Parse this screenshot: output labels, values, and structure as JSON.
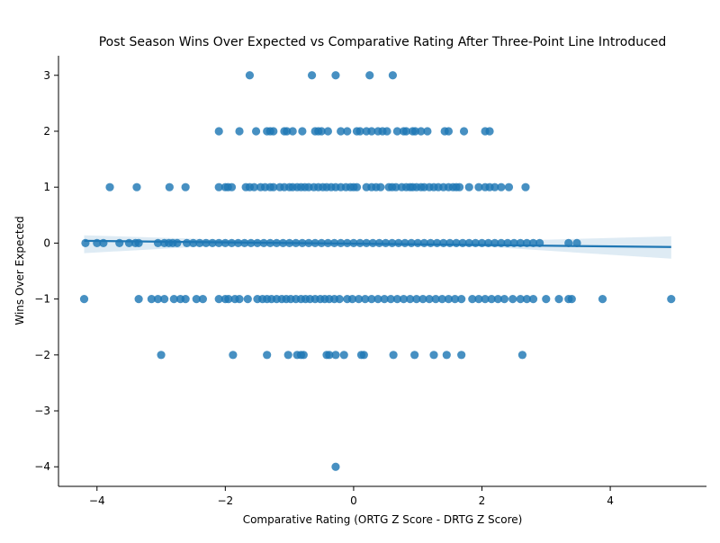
{
  "chart_data": {
    "type": "scatter",
    "title": "Post Season Wins Over Expected vs Comparative Rating After Three-Point Line Introduced",
    "xlabel": "Comparative Rating (ORTG Z Score - DRTG Z Score)",
    "ylabel": "Wins Over Expected",
    "xlim": [
      -4.6,
      5.5
    ],
    "ylim": [
      -4.35,
      3.35
    ],
    "xticks": [
      -4,
      -2,
      0,
      2,
      4
    ],
    "yticks": [
      -4,
      -3,
      -2,
      -1,
      0,
      1,
      2,
      3
    ],
    "xtick_labels": [
      "−4",
      "−2",
      "0",
      "2",
      "4"
    ],
    "ytick_labels": [
      "−4",
      "−3",
      "−2",
      "−1",
      "0",
      "1",
      "2",
      "3"
    ],
    "grid": false,
    "legend": "none",
    "colors": {
      "points": "#1f77b4",
      "regression": "#1f77b4",
      "band": "#1f77b4"
    },
    "regression": {
      "x": [
        -4.2,
        4.95
      ],
      "y": [
        0.04,
        -0.07
      ]
    },
    "confidence_band": {
      "x": [
        -4.2,
        -2,
        0,
        2,
        4.95
      ],
      "lower": [
        -0.18,
        -0.04,
        -0.03,
        -0.06,
        -0.28
      ],
      "upper": [
        0.14,
        0.06,
        0.03,
        0.03,
        0.12
      ]
    },
    "points": [
      {
        "x": -1.62,
        "y": 3
      },
      {
        "x": -0.65,
        "y": 3
      },
      {
        "x": -0.28,
        "y": 3
      },
      {
        "x": 0.25,
        "y": 3
      },
      {
        "x": 0.61,
        "y": 3
      },
      {
        "x": -2.1,
        "y": 2
      },
      {
        "x": -1.78,
        "y": 2
      },
      {
        "x": -1.52,
        "y": 2
      },
      {
        "x": -1.35,
        "y": 2
      },
      {
        "x": -1.3,
        "y": 2
      },
      {
        "x": -1.25,
        "y": 2
      },
      {
        "x": -1.08,
        "y": 2
      },
      {
        "x": -1.04,
        "y": 2
      },
      {
        "x": -0.95,
        "y": 2
      },
      {
        "x": -0.8,
        "y": 2
      },
      {
        "x": -0.6,
        "y": 2
      },
      {
        "x": -0.55,
        "y": 2
      },
      {
        "x": -0.5,
        "y": 2
      },
      {
        "x": -0.4,
        "y": 2
      },
      {
        "x": -0.2,
        "y": 2
      },
      {
        "x": -0.1,
        "y": 2
      },
      {
        "x": 0.05,
        "y": 2
      },
      {
        "x": 0.1,
        "y": 2
      },
      {
        "x": 0.2,
        "y": 2
      },
      {
        "x": 0.28,
        "y": 2
      },
      {
        "x": 0.38,
        "y": 2
      },
      {
        "x": 0.45,
        "y": 2
      },
      {
        "x": 0.52,
        "y": 2
      },
      {
        "x": 0.68,
        "y": 2
      },
      {
        "x": 0.78,
        "y": 2
      },
      {
        "x": 0.82,
        "y": 2
      },
      {
        "x": 0.92,
        "y": 2
      },
      {
        "x": 0.96,
        "y": 2
      },
      {
        "x": 1.05,
        "y": 2
      },
      {
        "x": 1.15,
        "y": 2
      },
      {
        "x": 1.42,
        "y": 2
      },
      {
        "x": 1.48,
        "y": 2
      },
      {
        "x": 1.72,
        "y": 2
      },
      {
        "x": 2.05,
        "y": 2
      },
      {
        "x": 2.12,
        "y": 2
      },
      {
        "x": -3.8,
        "y": 1
      },
      {
        "x": -3.38,
        "y": 1
      },
      {
        "x": -2.87,
        "y": 1
      },
      {
        "x": -2.62,
        "y": 1
      },
      {
        "x": -2.1,
        "y": 1
      },
      {
        "x": -2.0,
        "y": 1
      },
      {
        "x": -1.96,
        "y": 1
      },
      {
        "x": -1.9,
        "y": 1
      },
      {
        "x": -1.68,
        "y": 1
      },
      {
        "x": -1.62,
        "y": 1
      },
      {
        "x": -1.55,
        "y": 1
      },
      {
        "x": -1.45,
        "y": 1
      },
      {
        "x": -1.38,
        "y": 1
      },
      {
        "x": -1.3,
        "y": 1
      },
      {
        "x": -1.25,
        "y": 1
      },
      {
        "x": -1.15,
        "y": 1
      },
      {
        "x": -1.08,
        "y": 1
      },
      {
        "x": -1.0,
        "y": 1
      },
      {
        "x": -0.95,
        "y": 1
      },
      {
        "x": -0.88,
        "y": 1
      },
      {
        "x": -0.82,
        "y": 1
      },
      {
        "x": -0.76,
        "y": 1
      },
      {
        "x": -0.7,
        "y": 1
      },
      {
        "x": -0.62,
        "y": 1
      },
      {
        "x": -0.55,
        "y": 1
      },
      {
        "x": -0.48,
        "y": 1
      },
      {
        "x": -0.42,
        "y": 1
      },
      {
        "x": -0.35,
        "y": 1
      },
      {
        "x": -0.28,
        "y": 1
      },
      {
        "x": -0.2,
        "y": 1
      },
      {
        "x": -0.12,
        "y": 1
      },
      {
        "x": -0.05,
        "y": 1
      },
      {
        "x": 0.0,
        "y": 1
      },
      {
        "x": 0.05,
        "y": 1
      },
      {
        "x": 0.2,
        "y": 1
      },
      {
        "x": 0.28,
        "y": 1
      },
      {
        "x": 0.35,
        "y": 1
      },
      {
        "x": 0.42,
        "y": 1
      },
      {
        "x": 0.55,
        "y": 1
      },
      {
        "x": 0.6,
        "y": 1
      },
      {
        "x": 0.66,
        "y": 1
      },
      {
        "x": 0.75,
        "y": 1
      },
      {
        "x": 0.82,
        "y": 1
      },
      {
        "x": 0.88,
        "y": 1
      },
      {
        "x": 0.92,
        "y": 1
      },
      {
        "x": 0.98,
        "y": 1
      },
      {
        "x": 1.05,
        "y": 1
      },
      {
        "x": 1.1,
        "y": 1
      },
      {
        "x": 1.18,
        "y": 1
      },
      {
        "x": 1.25,
        "y": 1
      },
      {
        "x": 1.32,
        "y": 1
      },
      {
        "x": 1.4,
        "y": 1
      },
      {
        "x": 1.48,
        "y": 1
      },
      {
        "x": 1.55,
        "y": 1
      },
      {
        "x": 1.6,
        "y": 1
      },
      {
        "x": 1.65,
        "y": 1
      },
      {
        "x": 1.8,
        "y": 1
      },
      {
        "x": 1.95,
        "y": 1
      },
      {
        "x": 2.05,
        "y": 1
      },
      {
        "x": 2.12,
        "y": 1
      },
      {
        "x": 2.2,
        "y": 1
      },
      {
        "x": 2.3,
        "y": 1
      },
      {
        "x": 2.42,
        "y": 1
      },
      {
        "x": 2.68,
        "y": 1
      },
      {
        "x": -4.18,
        "y": 0
      },
      {
        "x": -4.0,
        "y": 0
      },
      {
        "x": -3.9,
        "y": 0
      },
      {
        "x": -3.65,
        "y": 0
      },
      {
        "x": -3.5,
        "y": 0
      },
      {
        "x": -3.4,
        "y": 0
      },
      {
        "x": -3.35,
        "y": 0
      },
      {
        "x": -3.05,
        "y": 0
      },
      {
        "x": -2.95,
        "y": 0
      },
      {
        "x": -2.88,
        "y": 0
      },
      {
        "x": -2.82,
        "y": 0
      },
      {
        "x": -2.75,
        "y": 0
      },
      {
        "x": -2.6,
        "y": 0
      },
      {
        "x": -2.5,
        "y": 0
      },
      {
        "x": -2.4,
        "y": 0
      },
      {
        "x": -2.3,
        "y": 0
      },
      {
        "x": -2.2,
        "y": 0
      },
      {
        "x": -2.1,
        "y": 0
      },
      {
        "x": -2.0,
        "y": 0
      },
      {
        "x": -1.9,
        "y": 0
      },
      {
        "x": -1.8,
        "y": 0
      },
      {
        "x": -1.7,
        "y": 0
      },
      {
        "x": -1.6,
        "y": 0
      },
      {
        "x": -1.5,
        "y": 0
      },
      {
        "x": -1.4,
        "y": 0
      },
      {
        "x": -1.3,
        "y": 0
      },
      {
        "x": -1.2,
        "y": 0
      },
      {
        "x": -1.1,
        "y": 0
      },
      {
        "x": -1.0,
        "y": 0
      },
      {
        "x": -0.9,
        "y": 0
      },
      {
        "x": -0.8,
        "y": 0
      },
      {
        "x": -0.7,
        "y": 0
      },
      {
        "x": -0.6,
        "y": 0
      },
      {
        "x": -0.5,
        "y": 0
      },
      {
        "x": -0.4,
        "y": 0
      },
      {
        "x": -0.3,
        "y": 0
      },
      {
        "x": -0.2,
        "y": 0
      },
      {
        "x": -0.1,
        "y": 0
      },
      {
        "x": 0.0,
        "y": 0
      },
      {
        "x": 0.1,
        "y": 0
      },
      {
        "x": 0.2,
        "y": 0
      },
      {
        "x": 0.3,
        "y": 0
      },
      {
        "x": 0.4,
        "y": 0
      },
      {
        "x": 0.5,
        "y": 0
      },
      {
        "x": 0.6,
        "y": 0
      },
      {
        "x": 0.7,
        "y": 0
      },
      {
        "x": 0.8,
        "y": 0
      },
      {
        "x": 0.9,
        "y": 0
      },
      {
        "x": 1.0,
        "y": 0
      },
      {
        "x": 1.1,
        "y": 0
      },
      {
        "x": 1.2,
        "y": 0
      },
      {
        "x": 1.3,
        "y": 0
      },
      {
        "x": 1.4,
        "y": 0
      },
      {
        "x": 1.5,
        "y": 0
      },
      {
        "x": 1.6,
        "y": 0
      },
      {
        "x": 1.7,
        "y": 0
      },
      {
        "x": 1.8,
        "y": 0
      },
      {
        "x": 1.9,
        "y": 0
      },
      {
        "x": 2.0,
        "y": 0
      },
      {
        "x": 2.1,
        "y": 0
      },
      {
        "x": 2.2,
        "y": 0
      },
      {
        "x": 2.3,
        "y": 0
      },
      {
        "x": 2.4,
        "y": 0
      },
      {
        "x": 2.5,
        "y": 0
      },
      {
        "x": 2.6,
        "y": 0
      },
      {
        "x": 2.7,
        "y": 0
      },
      {
        "x": 2.8,
        "y": 0
      },
      {
        "x": 2.9,
        "y": 0
      },
      {
        "x": 3.35,
        "y": 0
      },
      {
        "x": 3.48,
        "y": 0
      },
      {
        "x": -4.2,
        "y": -1
      },
      {
        "x": -3.35,
        "y": -1
      },
      {
        "x": -3.15,
        "y": -1
      },
      {
        "x": -3.05,
        "y": -1
      },
      {
        "x": -2.95,
        "y": -1
      },
      {
        "x": -2.8,
        "y": -1
      },
      {
        "x": -2.7,
        "y": -1
      },
      {
        "x": -2.62,
        "y": -1
      },
      {
        "x": -2.45,
        "y": -1
      },
      {
        "x": -2.35,
        "y": -1
      },
      {
        "x": -2.1,
        "y": -1
      },
      {
        "x": -2.0,
        "y": -1
      },
      {
        "x": -1.95,
        "y": -1
      },
      {
        "x": -1.85,
        "y": -1
      },
      {
        "x": -1.78,
        "y": -1
      },
      {
        "x": -1.65,
        "y": -1
      },
      {
        "x": -1.5,
        "y": -1
      },
      {
        "x": -1.42,
        "y": -1
      },
      {
        "x": -1.35,
        "y": -1
      },
      {
        "x": -1.28,
        "y": -1
      },
      {
        "x": -1.2,
        "y": -1
      },
      {
        "x": -1.12,
        "y": -1
      },
      {
        "x": -1.05,
        "y": -1
      },
      {
        "x": -0.98,
        "y": -1
      },
      {
        "x": -0.9,
        "y": -1
      },
      {
        "x": -0.82,
        "y": -1
      },
      {
        "x": -0.75,
        "y": -1
      },
      {
        "x": -0.68,
        "y": -1
      },
      {
        "x": -0.6,
        "y": -1
      },
      {
        "x": -0.52,
        "y": -1
      },
      {
        "x": -0.45,
        "y": -1
      },
      {
        "x": -0.38,
        "y": -1
      },
      {
        "x": -0.3,
        "y": -1
      },
      {
        "x": -0.22,
        "y": -1
      },
      {
        "x": -0.1,
        "y": -1
      },
      {
        "x": -0.02,
        "y": -1
      },
      {
        "x": 0.08,
        "y": -1
      },
      {
        "x": 0.18,
        "y": -1
      },
      {
        "x": 0.28,
        "y": -1
      },
      {
        "x": 0.38,
        "y": -1
      },
      {
        "x": 0.48,
        "y": -1
      },
      {
        "x": 0.58,
        "y": -1
      },
      {
        "x": 0.68,
        "y": -1
      },
      {
        "x": 0.78,
        "y": -1
      },
      {
        "x": 0.88,
        "y": -1
      },
      {
        "x": 0.98,
        "y": -1
      },
      {
        "x": 1.08,
        "y": -1
      },
      {
        "x": 1.18,
        "y": -1
      },
      {
        "x": 1.28,
        "y": -1
      },
      {
        "x": 1.38,
        "y": -1
      },
      {
        "x": 1.48,
        "y": -1
      },
      {
        "x": 1.58,
        "y": -1
      },
      {
        "x": 1.68,
        "y": -1
      },
      {
        "x": 1.85,
        "y": -1
      },
      {
        "x": 1.95,
        "y": -1
      },
      {
        "x": 2.05,
        "y": -1
      },
      {
        "x": 2.15,
        "y": -1
      },
      {
        "x": 2.25,
        "y": -1
      },
      {
        "x": 2.35,
        "y": -1
      },
      {
        "x": 2.48,
        "y": -1
      },
      {
        "x": 2.6,
        "y": -1
      },
      {
        "x": 2.7,
        "y": -1
      },
      {
        "x": 2.8,
        "y": -1
      },
      {
        "x": 3.0,
        "y": -1
      },
      {
        "x": 3.2,
        "y": -1
      },
      {
        "x": 3.35,
        "y": -1
      },
      {
        "x": 3.4,
        "y": -1
      },
      {
        "x": 3.88,
        "y": -1
      },
      {
        "x": 4.95,
        "y": -1
      },
      {
        "x": -3.0,
        "y": -2
      },
      {
        "x": -1.88,
        "y": -2
      },
      {
        "x": -1.35,
        "y": -2
      },
      {
        "x": -1.02,
        "y": -2
      },
      {
        "x": -0.88,
        "y": -2
      },
      {
        "x": -0.82,
        "y": -2
      },
      {
        "x": -0.78,
        "y": -2
      },
      {
        "x": -0.42,
        "y": -2
      },
      {
        "x": -0.38,
        "y": -2
      },
      {
        "x": -0.28,
        "y": -2
      },
      {
        "x": -0.15,
        "y": -2
      },
      {
        "x": 0.12,
        "y": -2
      },
      {
        "x": 0.16,
        "y": -2
      },
      {
        "x": 0.62,
        "y": -2
      },
      {
        "x": 0.95,
        "y": -2
      },
      {
        "x": 1.25,
        "y": -2
      },
      {
        "x": 1.45,
        "y": -2
      },
      {
        "x": 1.68,
        "y": -2
      },
      {
        "x": 2.63,
        "y": -2
      },
      {
        "x": -0.28,
        "y": -4
      }
    ]
  }
}
